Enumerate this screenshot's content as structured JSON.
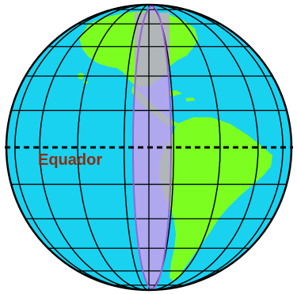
{
  "labels": {
    "equator": "Equador"
  },
  "colors": {
    "ocean": "#19d2f0",
    "land": "#7cff20",
    "grid": "#000000",
    "outline": "#000000",
    "highlight_band": "#b7a5ee",
    "highlight_band_outline": "#9a63d8",
    "land_under_band": "#b1b6b8",
    "equator_line": "#000000",
    "equator_label": "#8b2e12"
  },
  "icons": {
    "globe": "globe-icon"
  }
}
